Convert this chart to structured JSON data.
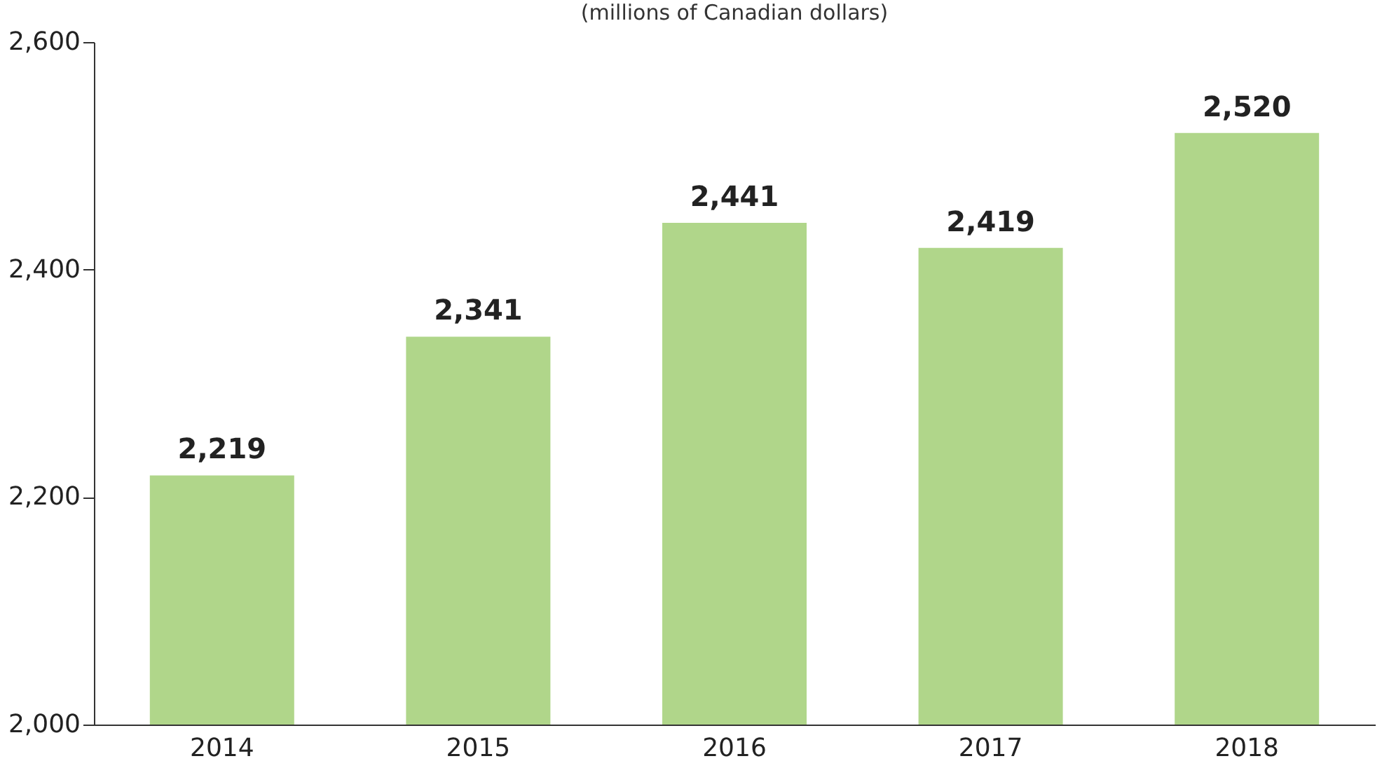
{
  "chart_data": {
    "type": "bar",
    "subtitle": "(millions of Canadian dollars)",
    "categories": [
      "2014",
      "2015",
      "2016",
      "2017",
      "2018"
    ],
    "values": [
      2219,
      2341,
      2441,
      2419,
      2520
    ],
    "value_labels": [
      "2,219",
      "2,341",
      "2,441",
      "2,419",
      "2,520"
    ],
    "color": "#b0d68a",
    "ylim": [
      2000,
      2600
    ],
    "yticks": [
      {
        "value": 2000,
        "label": "2,000"
      },
      {
        "value": 2200,
        "label": "2,200"
      },
      {
        "value": 2400,
        "label": "2,400"
      },
      {
        "value": 2600,
        "label": "2,600"
      }
    ],
    "grid": false
  }
}
